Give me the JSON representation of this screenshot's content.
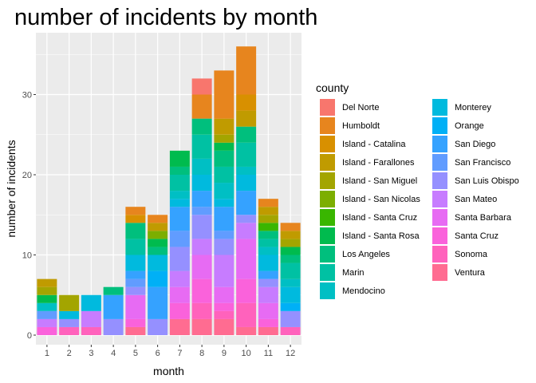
{
  "chart_data": {
    "type": "bar",
    "stacked": true,
    "title": "number of incidents by month",
    "xlabel": "month",
    "ylabel": "number of incidents",
    "x": [
      "1",
      "2",
      "3",
      "4",
      "5",
      "6",
      "7",
      "8",
      "9",
      "10",
      "11",
      "12"
    ],
    "ylim": [
      0,
      38
    ],
    "yticks": [
      0,
      10,
      20,
      30
    ],
    "grid": true,
    "legend": {
      "title": "county",
      "position": "right",
      "columns": 2
    },
    "series": [
      {
        "name": "Del Norte",
        "color": "#F8766D",
        "values": [
          0,
          0,
          0,
          0,
          0,
          0,
          0,
          2,
          0,
          0,
          0,
          0
        ]
      },
      {
        "name": "Humboldt",
        "color": "#E7851E",
        "values": [
          0,
          0,
          0,
          0,
          1,
          1,
          0,
          3,
          6,
          6,
          1,
          1
        ]
      },
      {
        "name": "Island - Catalina",
        "color": "#D89000",
        "values": [
          0,
          0,
          0,
          0,
          1,
          0,
          0,
          0,
          0,
          2,
          0,
          0
        ]
      },
      {
        "name": "Island - Farallones",
        "color": "#C09B00",
        "values": [
          1,
          0,
          0,
          0,
          0,
          1,
          0,
          0,
          2,
          2,
          1,
          1
        ]
      },
      {
        "name": "Island - San Miguel",
        "color": "#A3A500",
        "values": [
          1,
          2,
          0,
          0,
          0,
          0,
          0,
          0,
          1,
          0,
          1,
          1
        ]
      },
      {
        "name": "Island - San Nicolas",
        "color": "#7CAE00",
        "values": [
          0,
          0,
          0,
          0,
          0,
          1,
          0,
          0,
          0,
          0,
          0,
          0
        ]
      },
      {
        "name": "Island - Santa Cruz",
        "color": "#39B600",
        "values": [
          0,
          0,
          0,
          0,
          0,
          0,
          0,
          0,
          0,
          0,
          1,
          0
        ]
      },
      {
        "name": "Island - Santa Rosa",
        "color": "#00BB4E",
        "values": [
          1,
          0,
          0,
          0,
          0,
          1,
          2,
          0,
          1,
          0,
          0,
          1
        ]
      },
      {
        "name": "Los Angeles",
        "color": "#00BF7D",
        "values": [
          0,
          0,
          0,
          1,
          2,
          1,
          1,
          2,
          2,
          2,
          1,
          1
        ]
      },
      {
        "name": "Marin",
        "color": "#00C1A3",
        "values": [
          0,
          0,
          0,
          0,
          2,
          0,
          2,
          3,
          2,
          3,
          1,
          2
        ]
      },
      {
        "name": "Mendocino",
        "color": "#00BFC4",
        "values": [
          1,
          0,
          0,
          0,
          0,
          0,
          1,
          2,
          2,
          1,
          1,
          1
        ]
      },
      {
        "name": "Monterey",
        "color": "#00BADE",
        "values": [
          0,
          1,
          2,
          0,
          2,
          2,
          1,
          2,
          1,
          2,
          2,
          2
        ]
      },
      {
        "name": "Orange",
        "color": "#00B0F6",
        "values": [
          0,
          0,
          0,
          0,
          0,
          2,
          0,
          0,
          0,
          0,
          0,
          1
        ]
      },
      {
        "name": "San Diego",
        "color": "#35A2FF",
        "values": [
          0,
          0,
          0,
          3,
          1,
          4,
          3,
          2,
          3,
          3,
          1,
          0
        ]
      },
      {
        "name": "San Francisco",
        "color": "#619CFF",
        "values": [
          1,
          0,
          0,
          0,
          1,
          0,
          2,
          1,
          1,
          0,
          0,
          0
        ]
      },
      {
        "name": "San Luis Obispo",
        "color": "#9590FF",
        "values": [
          0,
          1,
          0,
          2,
          1,
          2,
          3,
          3,
          2,
          1,
          1,
          2
        ]
      },
      {
        "name": "San Mateo",
        "color": "#C77CFF",
        "values": [
          1,
          0,
          2,
          0,
          0,
          0,
          2,
          2,
          4,
          2,
          2,
          0
        ]
      },
      {
        "name": "Santa Barbara",
        "color": "#E76BF3",
        "values": [
          0,
          0,
          0,
          0,
          3,
          0,
          2,
          3,
          2,
          5,
          2,
          0
        ]
      },
      {
        "name": "Santa Cruz",
        "color": "#FA62DB",
        "values": [
          1,
          0,
          0,
          0,
          1,
          0,
          2,
          3,
          1,
          3,
          1,
          0
        ]
      },
      {
        "name": "Sonoma",
        "color": "#FF62BC",
        "values": [
          0,
          1,
          1,
          0,
          0,
          0,
          0,
          2,
          1,
          3,
          0,
          1
        ]
      },
      {
        "name": "Ventura",
        "color": "#FF6C91",
        "values": [
          0,
          0,
          0,
          0,
          1,
          0,
          2,
          2,
          2,
          1,
          1,
          0
        ]
      }
    ]
  }
}
